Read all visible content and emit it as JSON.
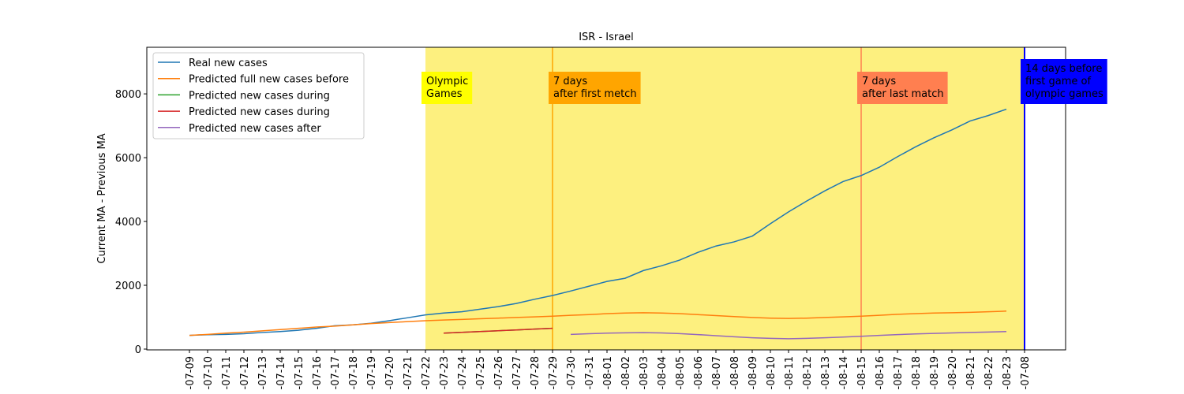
{
  "chart_data": {
    "type": "line",
    "title": "ISR - Israel",
    "ylabel": "Current MA - Previous MA",
    "categories": [
      "-07-09",
      "-07-10",
      "-07-11",
      "-07-12",
      "-07-13",
      "-07-14",
      "-07-15",
      "-07-16",
      "-07-17",
      "-07-18",
      "-07-19",
      "-07-20",
      "-07-21",
      "-07-22",
      "-07-23",
      "-07-24",
      "-07-25",
      "-07-26",
      "-07-27",
      "-07-28",
      "-07-29",
      "-07-30",
      "-07-31",
      "-08-01",
      "-08-02",
      "-08-03",
      "-08-04",
      "-08-05",
      "-08-06",
      "-08-07",
      "-08-08",
      "-08-09",
      "-08-10",
      "-08-11",
      "-08-12",
      "-08-13",
      "-08-14",
      "-08-15",
      "-08-16",
      "-08-17",
      "-08-18",
      "-08-19",
      "-08-20",
      "-08-21",
      "-08-22",
      "-08-23",
      "-07-08"
    ],
    "series": [
      {
        "name": "Real new cases",
        "color": "#1f77b4",
        "values": [
          430,
          450,
          460,
          480,
          520,
          550,
          590,
          650,
          730,
          760,
          810,
          890,
          980,
          1070,
          1130,
          1170,
          1250,
          1330,
          1430,
          1560,
          1680,
          1820,
          1970,
          2120,
          2220,
          2460,
          2610,
          2790,
          3030,
          3230,
          3360,
          3540,
          3930,
          4300,
          4640,
          4960,
          5250,
          5440,
          5700,
          6030,
          6340,
          6620,
          6870,
          7150,
          7320,
          7520,
          null
        ]
      },
      {
        "name": "Predicted full new cases before",
        "color": "#ff7f0e",
        "values": [
          430,
          460,
          500,
          530,
          570,
          610,
          650,
          690,
          720,
          760,
          800,
          830,
          860,
          890,
          910,
          930,
          950,
          970,
          990,
          1010,
          1030,
          1060,
          1080,
          1110,
          1130,
          1140,
          1130,
          1110,
          1080,
          1050,
          1020,
          990,
          970,
          960,
          970,
          990,
          1010,
          1030,
          1060,
          1090,
          1110,
          1130,
          1140,
          1150,
          1170,
          1190,
          null
        ]
      },
      {
        "name": "Predicted new cases during",
        "color": "#2ca02c",
        "values": [
          null,
          null,
          null,
          null,
          null,
          null,
          null,
          null,
          null,
          null,
          null,
          null,
          null,
          null,
          500,
          525,
          550,
          575,
          600,
          625,
          650,
          null,
          null,
          null,
          null,
          null,
          null,
          null,
          null,
          null,
          null,
          null,
          null,
          null,
          null,
          null,
          null,
          null,
          null,
          null,
          null,
          null,
          null,
          null,
          null,
          null,
          null
        ]
      },
      {
        "name": "Predicted new cases during",
        "color": "#d62728",
        "values": [
          null,
          null,
          null,
          null,
          null,
          null,
          null,
          null,
          null,
          null,
          null,
          null,
          null,
          null,
          500,
          525,
          550,
          575,
          600,
          625,
          650,
          null,
          null,
          null,
          null,
          null,
          null,
          null,
          null,
          null,
          null,
          null,
          null,
          null,
          null,
          null,
          null,
          null,
          null,
          null,
          null,
          null,
          null,
          null,
          null,
          null,
          null
        ]
      },
      {
        "name": "Predicted new cases after",
        "color": "#9467bd",
        "values": [
          null,
          null,
          null,
          null,
          null,
          null,
          null,
          null,
          null,
          null,
          null,
          null,
          null,
          null,
          null,
          null,
          null,
          null,
          null,
          null,
          null,
          460,
          480,
          500,
          510,
          515,
          505,
          485,
          455,
          420,
          385,
          355,
          335,
          325,
          335,
          355,
          375,
          400,
          430,
          455,
          475,
          490,
          505,
          520,
          535,
          550,
          null
        ]
      }
    ],
    "ylim": [
      -25,
      9460
    ],
    "yticks": [
      0,
      2000,
      4000,
      6000,
      8000
    ],
    "legend": "upper left",
    "span": {
      "from": "-07-22",
      "to": "-07-08",
      "color": "#fdf07f"
    },
    "annotations": [
      {
        "x": "-07-22",
        "text": [
          "Olympic",
          "Games"
        ],
        "box": "#ffff00",
        "text_color": "#000000"
      },
      {
        "x": "-07-29",
        "text": [
          "7 days",
          "after first metch"
        ],
        "box": "#ffa500",
        "line": "#ffa500",
        "text_color": "#000000"
      },
      {
        "x": "-08-15",
        "text": [
          "7 days",
          "after last match"
        ],
        "box": "#ff7f50",
        "line": "#ff7f50",
        "text_color": "#000000"
      },
      {
        "x": "-07-08",
        "text": [
          "14 days before",
          "first game of",
          "olympic games"
        ],
        "box": "#0000ff",
        "line": "#0000ff",
        "text_color": "#ffffff"
      }
    ]
  }
}
